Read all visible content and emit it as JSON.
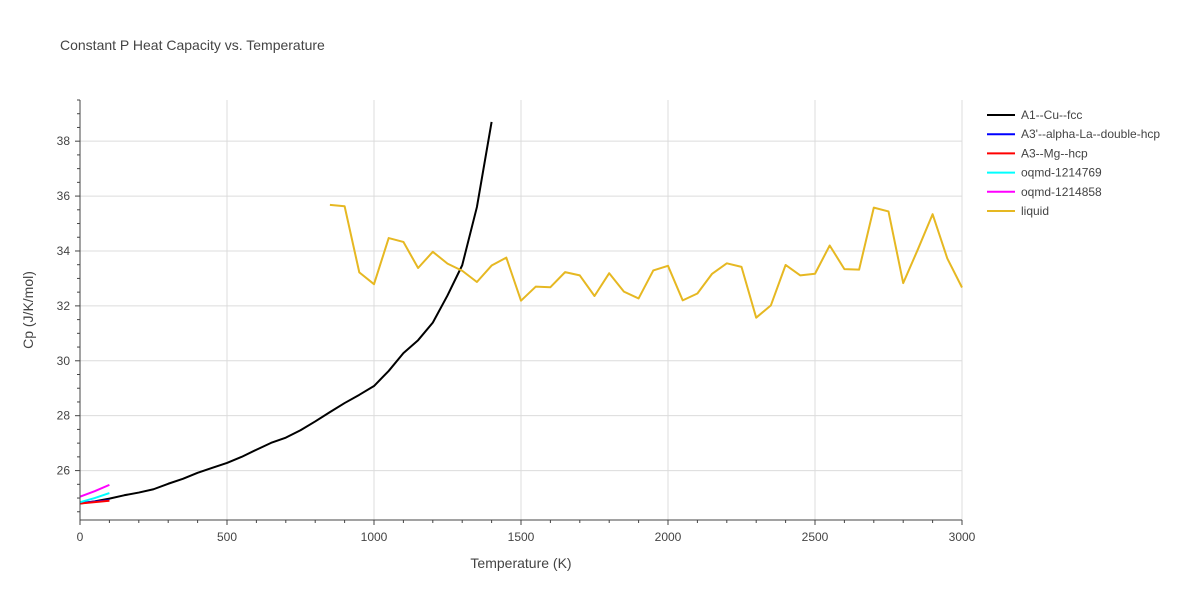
{
  "chart_data": {
    "type": "line",
    "title": "Constant P Heat Capacity vs. Temperature",
    "xlabel": "Temperature (K)",
    "ylabel": "Cp (J/K/mol)",
    "xlim": [
      0,
      3000
    ],
    "ylim": [
      24.2,
      39.5
    ],
    "xticks": [
      0,
      500,
      1000,
      1500,
      2000,
      2500,
      3000
    ],
    "yticks": [
      26,
      28,
      30,
      32,
      34,
      36,
      38
    ],
    "grid": true,
    "legend_position": "top-right",
    "series": [
      {
        "name": "A1--Cu--fcc",
        "color": "#000000",
        "x": [
          0,
          50,
          100,
          150,
          200,
          250,
          300,
          350,
          400,
          450,
          500,
          550,
          600,
          650,
          700,
          750,
          800,
          850,
          900,
          950,
          1000,
          1050,
          1100,
          1150,
          1200,
          1250,
          1300,
          1350,
          1400
        ],
        "y": [
          24.8,
          24.88,
          24.98,
          25.1,
          25.2,
          25.32,
          25.52,
          25.7,
          25.92,
          26.1,
          26.28,
          26.5,
          26.76,
          27.01,
          27.2,
          27.47,
          27.79,
          28.13,
          28.46,
          28.76,
          29.08,
          29.63,
          30.28,
          30.75,
          31.39,
          32.38,
          33.48,
          35.6,
          38.7
        ]
      },
      {
        "name": "A3'--alpha-La--double-hcp",
        "color": "#0000ff",
        "x": [
          0,
          50,
          100
        ],
        "y": [
          24.82,
          24.87,
          24.92
        ]
      },
      {
        "name": "A3--Mg--hcp",
        "color": "#ff0000",
        "x": [
          0,
          50,
          100
        ],
        "y": [
          24.8,
          24.85,
          24.9
        ]
      },
      {
        "name": "oqmd-1214769",
        "color": "#00ffff",
        "x": [
          0,
          50,
          100
        ],
        "y": [
          24.85,
          25.0,
          25.18
        ]
      },
      {
        "name": "oqmd-1214858",
        "color": "#ff00ff",
        "x": [
          0,
          50,
          100
        ],
        "y": [
          25.05,
          25.25,
          25.48
        ]
      },
      {
        "name": "liquid",
        "color": "#e6b822",
        "x": [
          850,
          900,
          950,
          1000,
          1050,
          1100,
          1150,
          1200,
          1250,
          1300,
          1350,
          1400,
          1450,
          1500,
          1550,
          1600,
          1650,
          1700,
          1750,
          1800,
          1850,
          1900,
          1950,
          2000,
          2050,
          2100,
          2150,
          2200,
          2250,
          2300,
          2350,
          2400,
          2450,
          2500,
          2550,
          2600,
          2650,
          2700,
          2750,
          2800,
          2850,
          2900,
          2950,
          3000
        ],
        "y": [
          35.68,
          35.63,
          33.22,
          32.79,
          34.47,
          34.33,
          33.38,
          33.97,
          33.54,
          33.28,
          32.87,
          33.47,
          33.76,
          32.19,
          32.7,
          32.68,
          33.23,
          33.11,
          32.36,
          33.19,
          32.52,
          32.27,
          33.29,
          33.46,
          32.2,
          32.45,
          33.17,
          33.55,
          33.42,
          31.57,
          32.02,
          33.49,
          33.11,
          33.17,
          34.2,
          33.34,
          33.32,
          35.58,
          35.44,
          32.83,
          34.06,
          35.34,
          33.73,
          32.67
        ]
      }
    ]
  }
}
